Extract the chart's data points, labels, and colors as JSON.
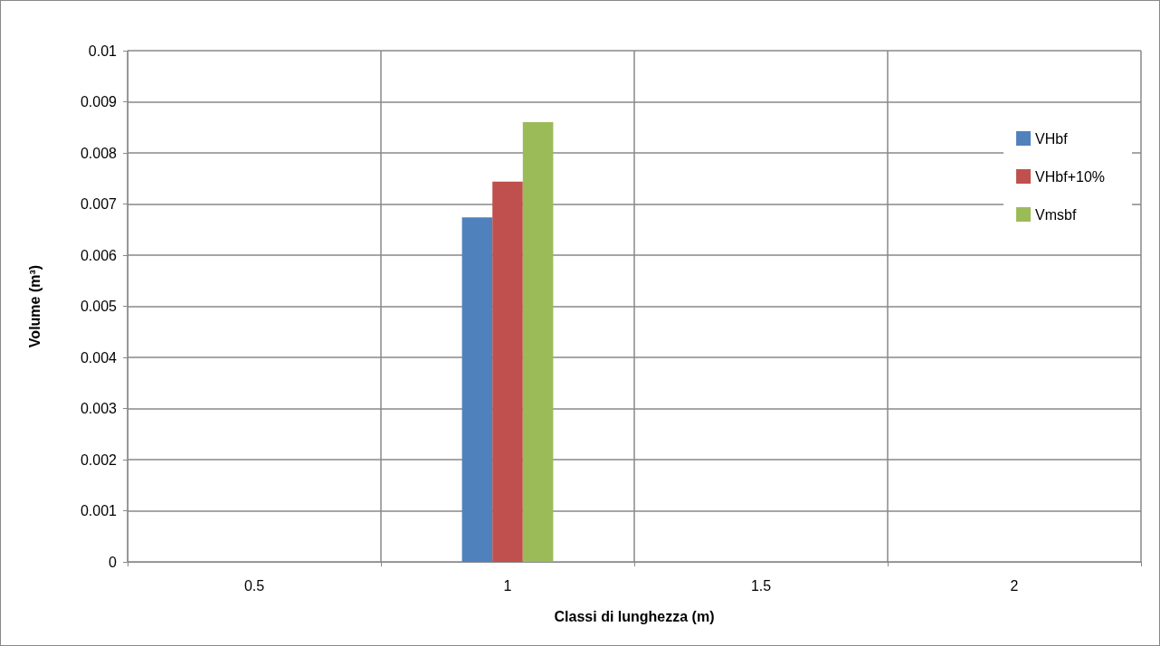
{
  "chart_data": {
    "type": "bar",
    "xlabel": "Classi di lunghezza (m)",
    "ylabel": "Volume (m³)",
    "categories": [
      "0.5",
      "1",
      "1.5",
      "2"
    ],
    "series": [
      {
        "name": "VHbf",
        "color": "#4f81bd",
        "values": [
          null,
          0.00674,
          null,
          null
        ]
      },
      {
        "name": "VHbf+10%",
        "color": "#c0504d",
        "values": [
          null,
          0.00744,
          null,
          null
        ]
      },
      {
        "name": "Vmsbf",
        "color": "#9bbb59",
        "values": [
          null,
          0.0086,
          null,
          null
        ]
      }
    ],
    "ylim": [
      0,
      0.01
    ],
    "yticks": [
      0,
      0.001,
      0.002,
      0.003,
      0.004,
      0.005,
      0.006,
      0.007,
      0.008,
      0.009,
      0.01
    ],
    "grid": true,
    "legend": "top right"
  }
}
